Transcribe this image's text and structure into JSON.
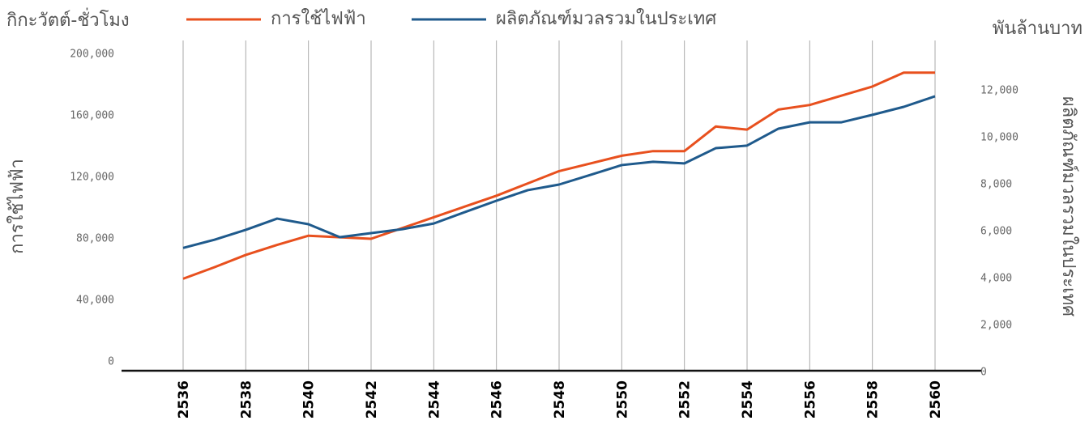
{
  "chart_data": {
    "type": "line",
    "ylabel_top": "กิกะวัตต์-ชั่วโมง",
    "y2label_top": "พันล้านบาท",
    "ylabel": "การใช้ไฟฟ้า",
    "y2label": "ผลิตภัณฑ์มวลรวมในประเทศ",
    "categories": [
      "2536",
      null,
      "2538",
      null,
      "2540",
      null,
      "2542",
      null,
      "2544",
      null,
      "2546",
      null,
      "2548",
      null,
      "2550",
      null,
      "2552",
      null,
      "2554",
      null,
      "2556",
      null,
      "2558",
      null,
      "2560"
    ],
    "series": [
      {
        "name": "การใช้ไฟฟ้า",
        "color": "#e8501e",
        "axis": "y",
        "values": [
          54000,
          61500,
          69500,
          76000,
          82000,
          81000,
          80000,
          87000,
          94000,
          101000,
          108000,
          116000,
          124000,
          129000,
          134000,
          137000,
          137000,
          153000,
          151000,
          164000,
          167000,
          173000,
          179000,
          188000,
          188000
        ]
      },
      {
        "name": "ผลิตภัณฑ์มวลรวมในประเทศ",
        "color": "#1f5a8c",
        "axis": "y2",
        "values": [
          5300,
          5650,
          6070,
          6550,
          6310,
          5760,
          5930,
          6100,
          6340,
          6830,
          7310,
          7760,
          8000,
          8410,
          8830,
          8970,
          8900,
          9550,
          9660,
          10380,
          10650,
          10650,
          10970,
          11310,
          11760
        ]
      }
    ],
    "ylim": [
      0,
      200000
    ],
    "yticks": [
      0,
      {
        "value": 40000,
        "label": "40,000"
      },
      {
        "value": 80000,
        "label": "80,000"
      },
      {
        "value": 120000,
        "label": "120,000"
      },
      {
        "value": 160000,
        "label": "160,000"
      },
      {
        "value": 200000,
        "label": "200,000"
      }
    ],
    "y2lim": [
      0,
      12000
    ],
    "y2ticks": [
      0,
      {
        "value": 2000,
        "label": "2,000"
      },
      {
        "value": 4000,
        "label": "4,000"
      },
      {
        "value": 6000,
        "label": "6,000"
      },
      {
        "value": 8000,
        "label": "8,000"
      },
      {
        "value": 10000,
        "label": "10,000"
      },
      {
        "value": 12000,
        "label": "12,000"
      }
    ],
    "grid": true
  }
}
